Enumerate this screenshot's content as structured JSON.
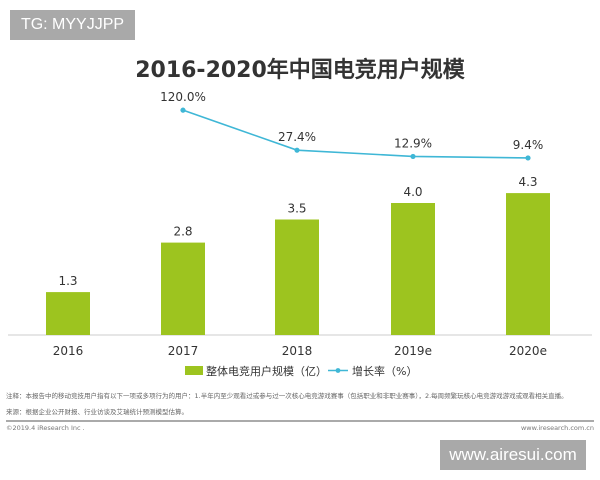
{
  "watermarks": {
    "top_left": "TG: MYYJJPP",
    "bottom_right": "www.airesui.com"
  },
  "chart_data": {
    "type": "bar+line",
    "title": "2016-2020年中国电竞用户规模",
    "categories": [
      "2016",
      "2017",
      "2018",
      "2019e",
      "2020e"
    ],
    "series": [
      {
        "name": "整体电竞用户规模（亿）",
        "type": "bar",
        "color": "#9dc41f",
        "values": [
          1.3,
          2.8,
          3.5,
          4.0,
          4.3
        ],
        "labels": [
          "1.3",
          "2.8",
          "3.5",
          "4.0",
          "4.3"
        ]
      },
      {
        "name": "增长率（%）",
        "type": "line",
        "color": "#3fb7d6",
        "values": [
          null,
          120.0,
          27.4,
          12.9,
          9.4
        ],
        "labels": [
          "",
          "120.0%",
          "27.4%",
          "12.9%",
          "9.4%"
        ]
      }
    ],
    "legend": "bottom",
    "grid": false
  },
  "footer": {
    "note": "注释：本报告中的移动竞技用户指有以下一项或多项行为的用户：1.半年内至少观看过或参与过一次核心电竞游戏赛事（包括职业和非职业赛事），2.每周频繁玩核心电竞游戏游戏或观看相关直播。",
    "source": "来源：根据企业公开财报、行业访谈及艾瑞统计预测模型估算。",
    "copyright": "©2019.4 iResearch Inc .",
    "site": "www.iresearch.com.cn"
  }
}
